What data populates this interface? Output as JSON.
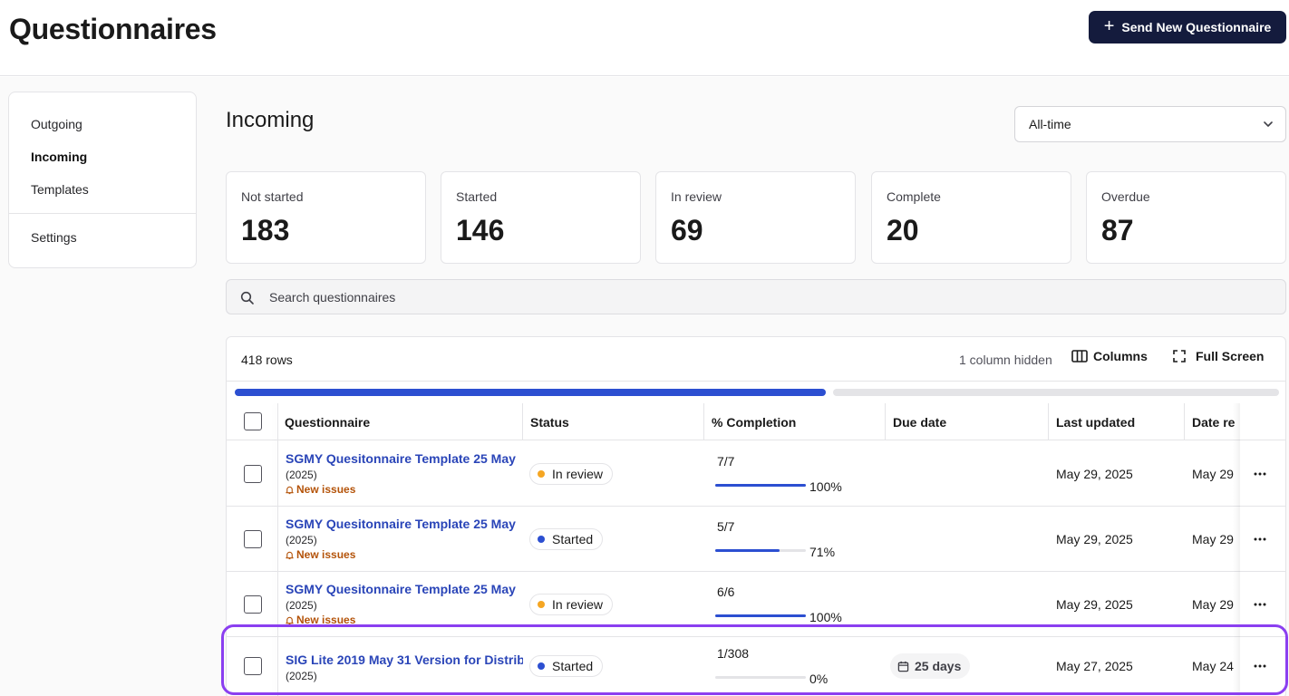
{
  "page": {
    "title": "Questionnaires",
    "send_button_label": "Send New Questionnaire"
  },
  "sidebar": {
    "items": [
      {
        "label": "Outgoing",
        "active": false
      },
      {
        "label": "Incoming",
        "active": true
      },
      {
        "label": "Templates",
        "active": false
      }
    ],
    "settings_label": "Settings"
  },
  "section": {
    "title": "Incoming",
    "time_filter": "All-time"
  },
  "stats": [
    {
      "label": "Not started",
      "value": "183"
    },
    {
      "label": "Started",
      "value": "146"
    },
    {
      "label": "In review",
      "value": "69"
    },
    {
      "label": "Complete",
      "value": "20"
    },
    {
      "label": "Overdue",
      "value": "87"
    }
  ],
  "search": {
    "placeholder": "Search questionnaires"
  },
  "table": {
    "row_count": "418 rows",
    "hidden_note": "1 column hidden",
    "columns_button": "Columns",
    "fullscreen_button": "Full Screen",
    "horizontal_scroll_fraction": 0.57,
    "headers": [
      "Questionnaire",
      "Status",
      "% Completion",
      "Due date",
      "Last updated",
      "Date re"
    ],
    "rows": [
      {
        "name": "SGMY Quesitonnaire Template 25 May",
        "year": "(2025)",
        "issues": "New issues",
        "status": "In review",
        "fraction": "7/7",
        "progress": 1.0,
        "percent": "100%",
        "due": "",
        "last_updated": "May 29, 2025",
        "date_received": "May 29"
      },
      {
        "name": "SGMY Quesitonnaire Template 25 May",
        "year": "(2025)",
        "issues": "New issues",
        "status": "Started",
        "fraction": "5/7",
        "progress": 0.71,
        "percent": "71%",
        "due": "",
        "last_updated": "May 29, 2025",
        "date_received": "May 29"
      },
      {
        "name": "SGMY Quesitonnaire Template 25 May",
        "year": "(2025)",
        "issues": "New issues",
        "status": "In review",
        "fraction": "6/6",
        "progress": 1.0,
        "percent": "100%",
        "due": "",
        "last_updated": "May 29, 2025",
        "date_received": "May 29"
      },
      {
        "name": "SIG Lite 2019 May 31 Version for Distrib",
        "year": "(2025)",
        "issues": "",
        "status": "Started",
        "fraction": "1/308",
        "progress": 0.0,
        "percent": "0%",
        "due": "25 days",
        "last_updated": "May 27, 2025",
        "date_received": "May 24"
      }
    ]
  },
  "colors": {
    "accent": "#2c4fd1",
    "primary_button": "#141b3d",
    "in_review_dot": "#f5a623",
    "started_dot": "#2c4fd1",
    "issues_text": "#b45309",
    "highlight": "#8b3ff0"
  },
  "icons": {
    "send": "plus-icon",
    "select": "chevron-down-icon",
    "search": "search-icon",
    "columns": "columns-icon",
    "fullscreen": "fullscreen-icon",
    "issues": "bell-icon",
    "due": "calendar-icon",
    "row_menu": "more-horizontal-icon"
  }
}
